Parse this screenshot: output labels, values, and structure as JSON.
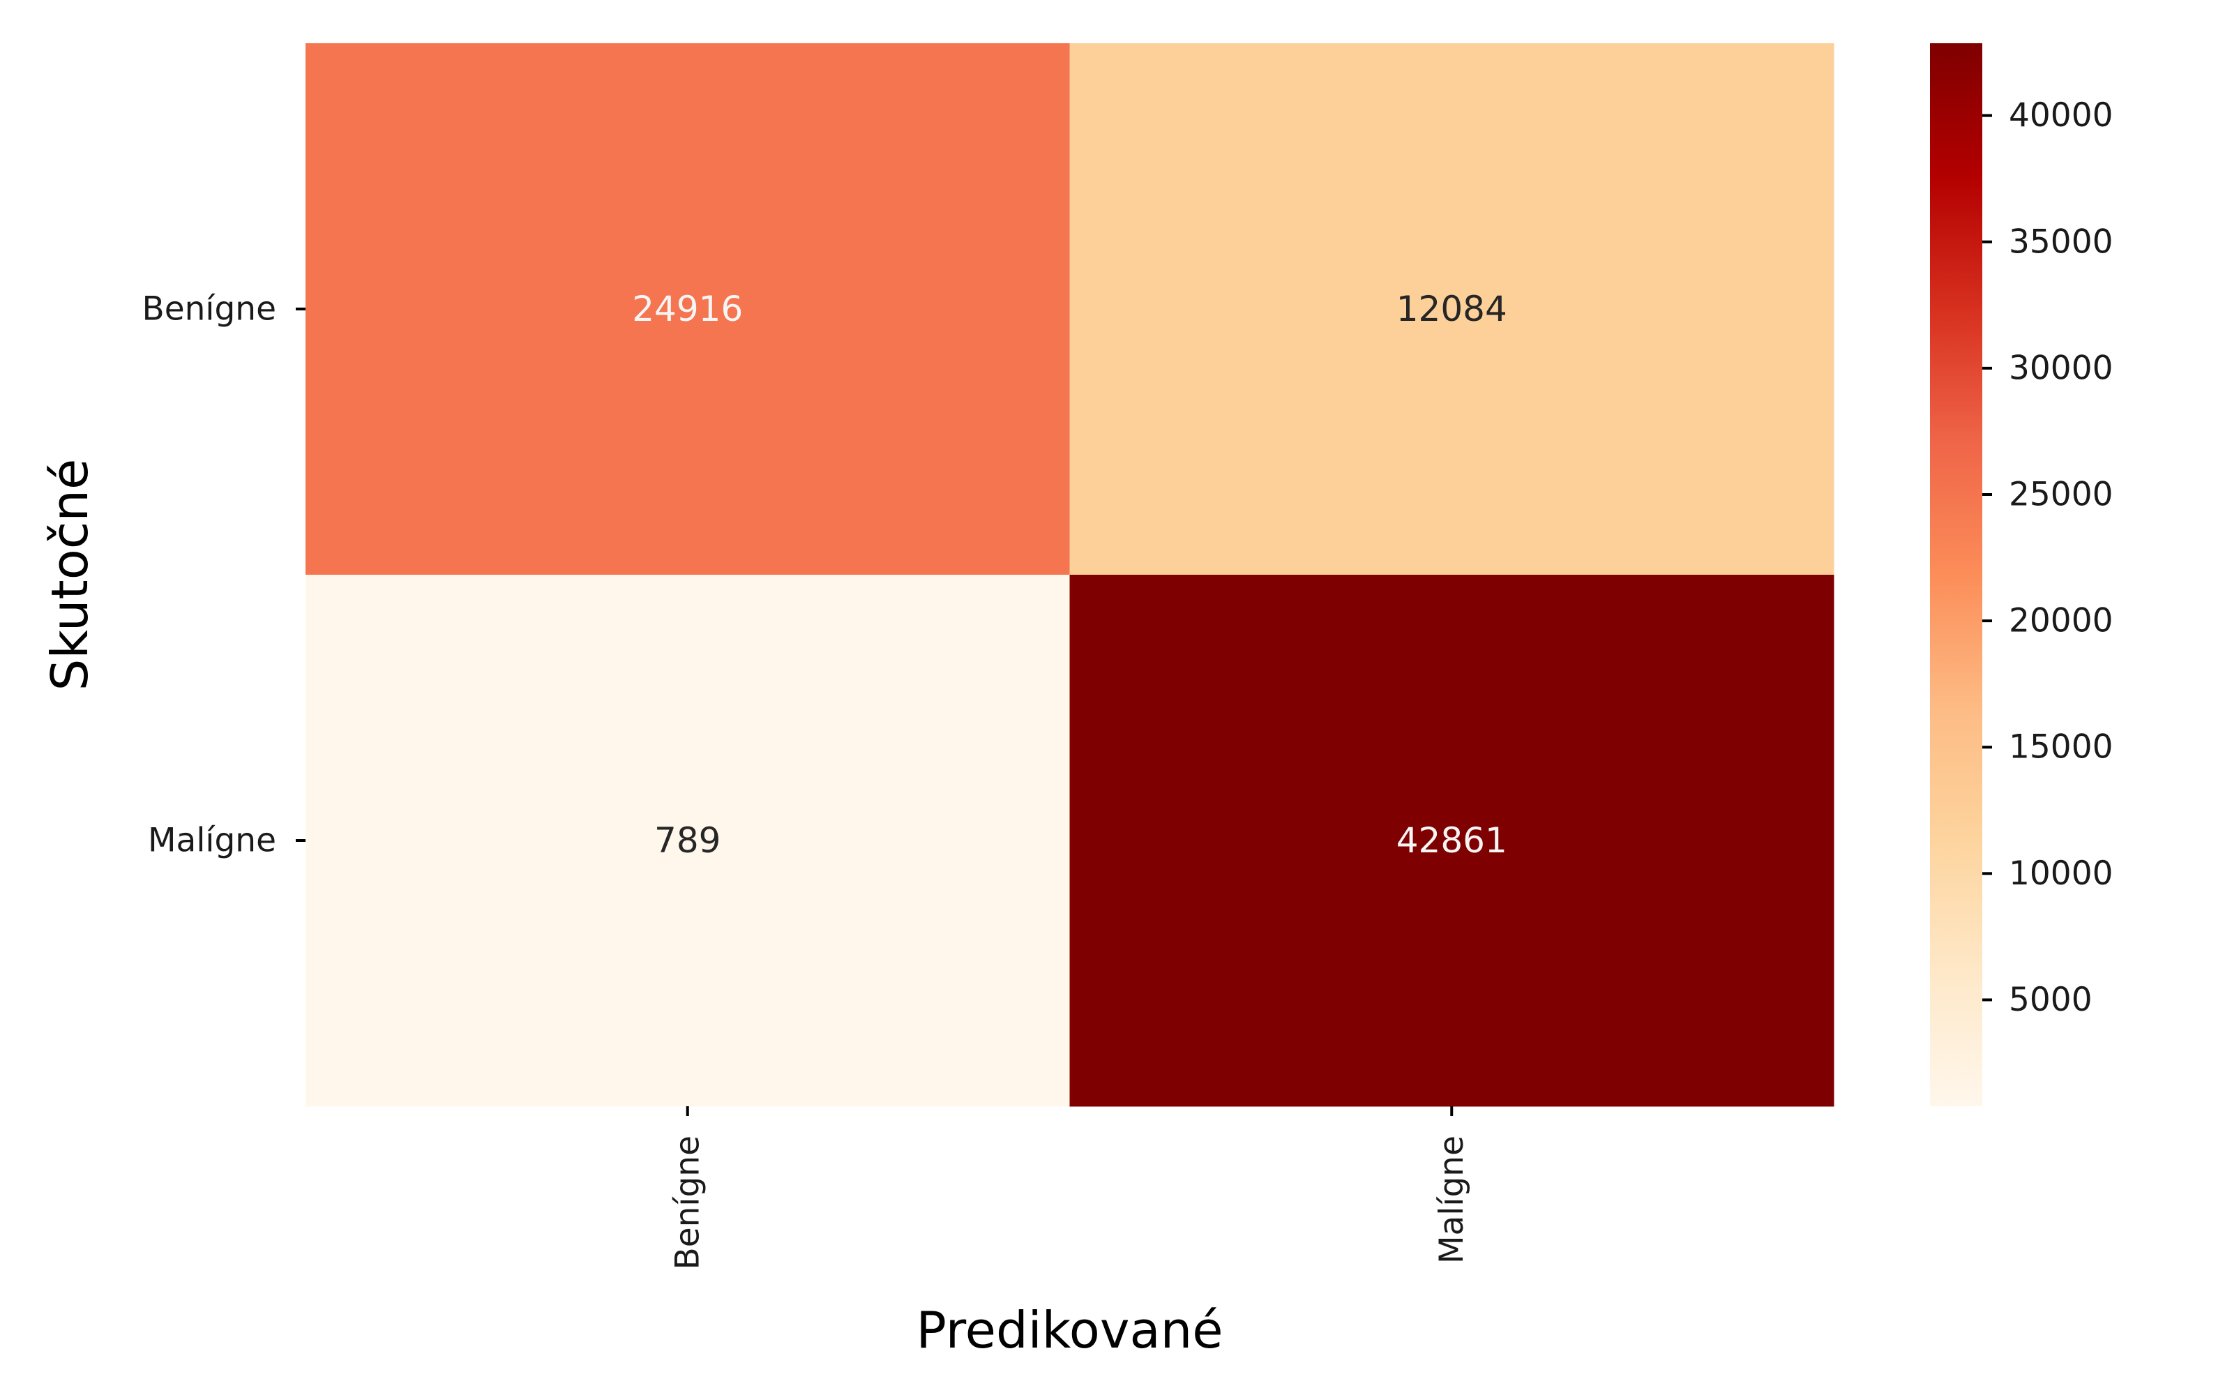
{
  "chart_data": {
    "type": "heatmap",
    "x_categories": [
      "Benígne",
      "Malígne"
    ],
    "y_categories": [
      "Benígne",
      "Malígne"
    ],
    "values": [
      [
        24916,
        12084
      ],
      [
        789,
        42861
      ]
    ],
    "xlabel": "Predikované",
    "ylabel": "Skutočné",
    "colormap": "OrRd",
    "colorbar": {
      "range": [
        789,
        42861
      ],
      "ticks": [
        5000,
        10000,
        15000,
        20000,
        25000,
        30000,
        35000,
        40000
      ],
      "tick_labels": [
        "5000",
        "10000",
        "15000",
        "20000",
        "25000",
        "30000",
        "35000",
        "40000"
      ]
    },
    "annotation_colors": {
      "light": "#f5f5f5",
      "dark": "#262626"
    },
    "legend_placement": "right"
  }
}
